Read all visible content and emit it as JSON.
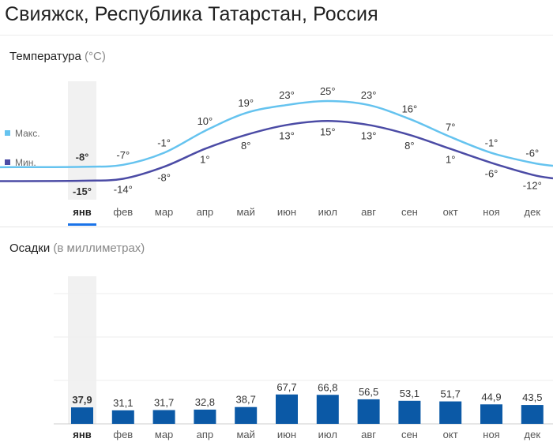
{
  "title": "Свияжск, Республика Татарстан, Россия",
  "temperature": {
    "section_label": "Температура",
    "unit_label": "(°C)",
    "legend": {
      "max_label": "Макс.",
      "min_label": "Мин.",
      "max_color": "#65c3ef",
      "min_color": "#4b4ba5"
    }
  },
  "precipitation": {
    "section_label": "Осадки",
    "unit_label": "(в миллиметрах)",
    "bar_color": "#0b59a6"
  },
  "months": [
    "янв",
    "фев",
    "мар",
    "апр",
    "май",
    "июн",
    "июл",
    "авг",
    "сен",
    "окт",
    "ноя",
    "дек"
  ],
  "selected_month": "янв",
  "accent_color": "#1a73e8",
  "chart_data": [
    {
      "type": "line",
      "categories": [
        "янв",
        "фев",
        "мар",
        "апр",
        "май",
        "июн",
        "июл",
        "авг",
        "сен",
        "окт",
        "ноя",
        "дек"
      ],
      "series": [
        {
          "name": "Макс.",
          "values": [
            -8,
            -7,
            -1,
            10,
            19,
            23,
            25,
            23,
            16,
            7,
            -1,
            -6
          ],
          "labels": [
            "-8°",
            "-7°",
            "-1°",
            "10°",
            "19°",
            "23°",
            "25°",
            "23°",
            "16°",
            "7°",
            "-1°",
            "-6°"
          ]
        },
        {
          "name": "Мин.",
          "values": [
            -15,
            -14,
            -8,
            1,
            8,
            13,
            15,
            13,
            8,
            1,
            -6,
            -12
          ],
          "labels": [
            "-15°",
            "-14°",
            "-8°",
            "1°",
            "8°",
            "13°",
            "15°",
            "13°",
            "8°",
            "1°",
            "-6°",
            "-12°"
          ]
        }
      ],
      "title": "Температура",
      "ylabel": "(°C)"
    },
    {
      "type": "bar",
      "categories": [
        "янв",
        "фев",
        "мар",
        "апр",
        "май",
        "июн",
        "июл",
        "авг",
        "сен",
        "окт",
        "ноя",
        "дек"
      ],
      "values": [
        37.9,
        31.1,
        31.7,
        32.8,
        38.7,
        67.7,
        66.8,
        56.5,
        53.1,
        51.7,
        44.9,
        43.5
      ],
      "labels": [
        "37,9",
        "31,1",
        "31,7",
        "32,8",
        "38,7",
        "67,7",
        "66,8",
        "56,5",
        "53,1",
        "51,7",
        "44,9",
        "43,5"
      ],
      "title": "Осадки",
      "ylabel": "(в миллиметрах)",
      "ylim": [
        0,
        300
      ],
      "grid": true
    }
  ]
}
